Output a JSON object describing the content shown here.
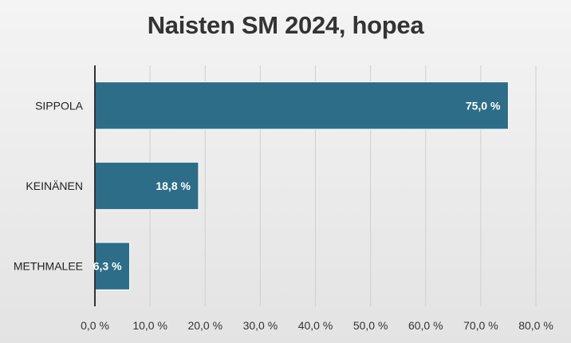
{
  "chart_data": {
    "type": "bar",
    "orientation": "horizontal",
    "title": "Naisten SM 2024, hopea",
    "categories": [
      "SIPPOLA",
      "KEINÄNEN",
      "METHMALEE"
    ],
    "values": [
      75.0,
      18.8,
      6.3
    ],
    "data_labels": [
      "75,0 %",
      "18,8 %",
      "6,3 %"
    ],
    "x_ticks": [
      0,
      10,
      20,
      30,
      40,
      50,
      60,
      70,
      80
    ],
    "x_tick_labels": [
      "0,0 %",
      "10,0 %",
      "20,0 %",
      "30,0 %",
      "40,0 %",
      "50,0 %",
      "60,0 %",
      "70,0 %",
      "80,0 %"
    ],
    "xlim": [
      0,
      80
    ],
    "grid": true,
    "legend": "none",
    "bar_color": "#2e6d87",
    "grid_color": "#cfcfcf"
  }
}
